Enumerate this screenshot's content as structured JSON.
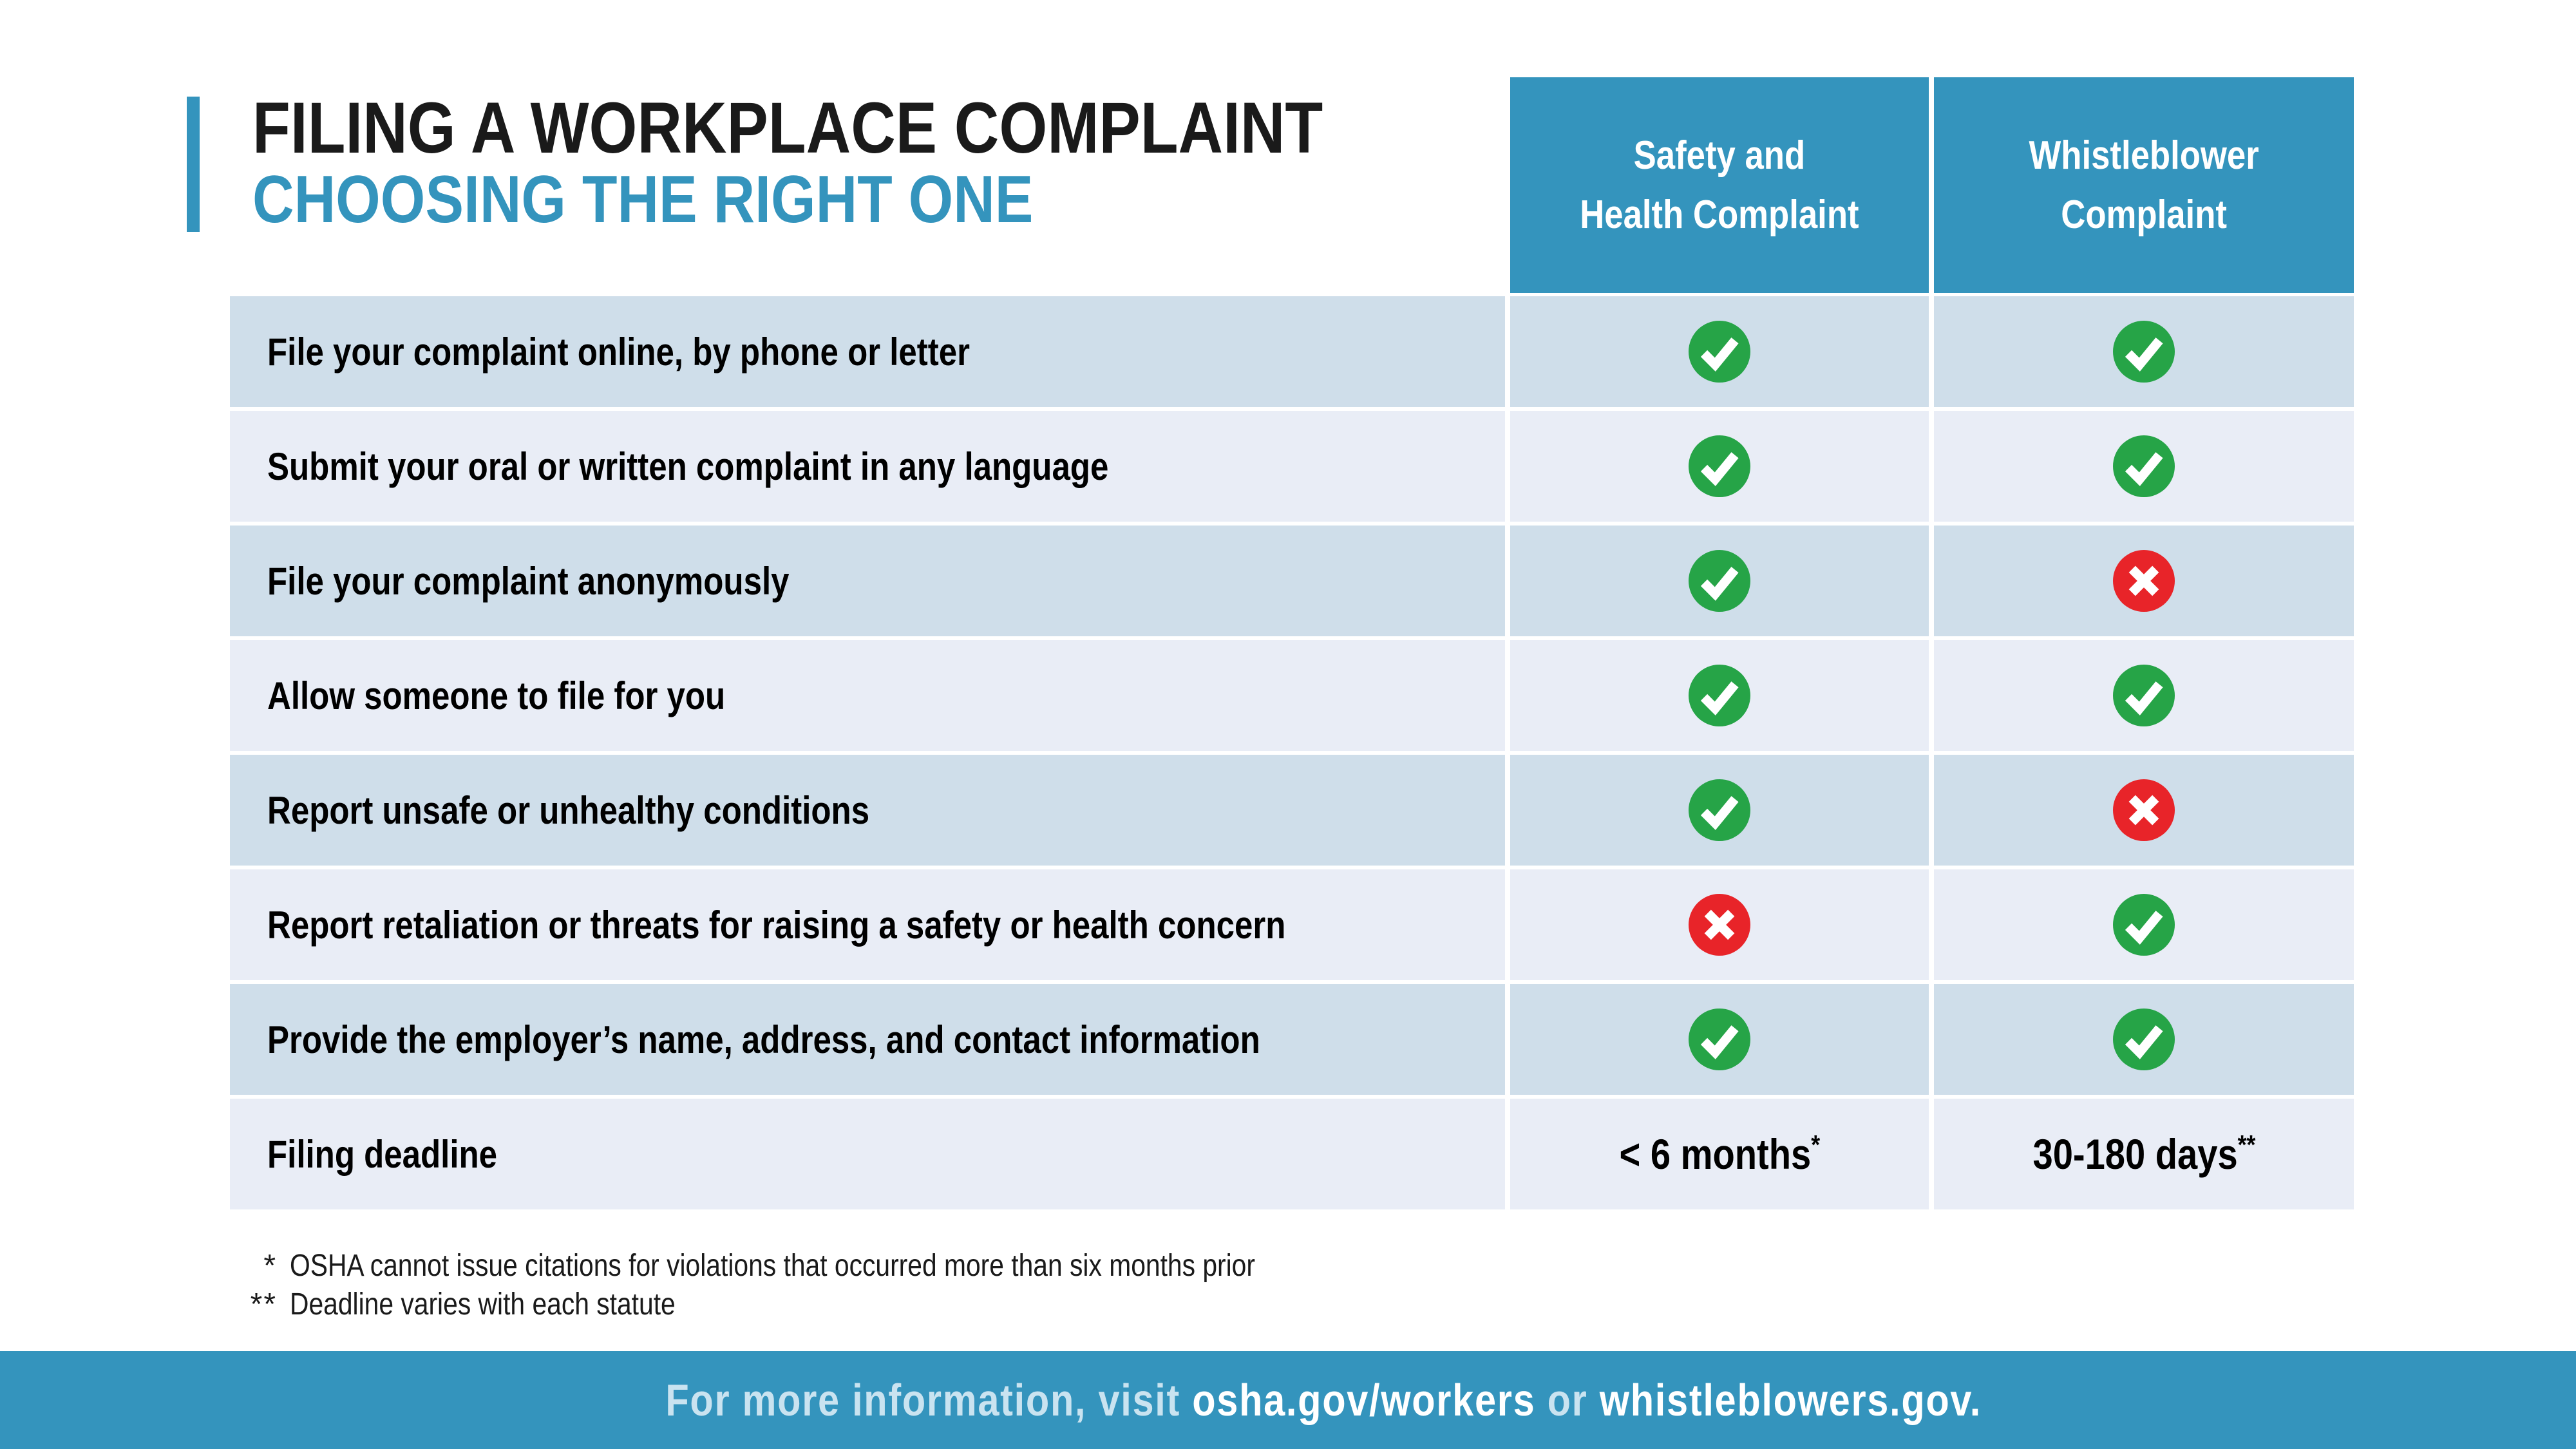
{
  "colors": {
    "blue": "#3494BD",
    "row_dark": "#CFDEEA",
    "row_light": "#E9EDF6",
    "green": "#26A447",
    "red": "#E82429",
    "footer_pale": "#C9E3F0",
    "ink": "#1A1A1A"
  },
  "header": {
    "title": "FILING A WORKPLACE COMPLAINT",
    "subtitle": "CHOOSING THE RIGHT ONE"
  },
  "table": {
    "columns": [
      {
        "line1": "Safety and",
        "line2": "Health Complaint"
      },
      {
        "line1": "Whistleblower",
        "line2": "Complaint"
      }
    ],
    "icon_names": {
      "check": "check-icon",
      "cross": "cross-icon"
    },
    "rows": [
      {
        "label": "File your complaint online, by phone or letter",
        "safety": "check",
        "whistleblower": "check"
      },
      {
        "label": "Submit your oral or written complaint in any language",
        "safety": "check",
        "whistleblower": "check"
      },
      {
        "label": "File your complaint anonymously",
        "safety": "check",
        "whistleblower": "cross"
      },
      {
        "label": "Allow someone to file for you",
        "safety": "check",
        "whistleblower": "check"
      },
      {
        "label": "Report unsafe or unhealthy conditions",
        "safety": "check",
        "whistleblower": "cross"
      },
      {
        "label": "Report retaliation or threats for raising a safety or health concern",
        "safety": "cross",
        "whistleblower": "check"
      },
      {
        "label": "Provide the employer’s name, address, and contact information",
        "safety": "check",
        "whistleblower": "check"
      },
      {
        "label": "Filing deadline",
        "safety": {
          "text": "< 6 months",
          "sup": "*"
        },
        "whistleblower": {
          "text": "30-180 days",
          "sup": "**"
        }
      }
    ]
  },
  "footnotes": [
    {
      "marker": "*",
      "text": "OSHA cannot issue citations for violations that occurred more than six months prior"
    },
    {
      "marker": "**",
      "text": "Deadline varies with each statute"
    }
  ],
  "footer": {
    "segments": [
      {
        "text": "For more information, visit ",
        "style": "pale"
      },
      {
        "text": "osha.gov/workers",
        "style": "white"
      },
      {
        "text": " or ",
        "style": "pale"
      },
      {
        "text": "whistleblowers.gov.",
        "style": "white"
      }
    ]
  }
}
